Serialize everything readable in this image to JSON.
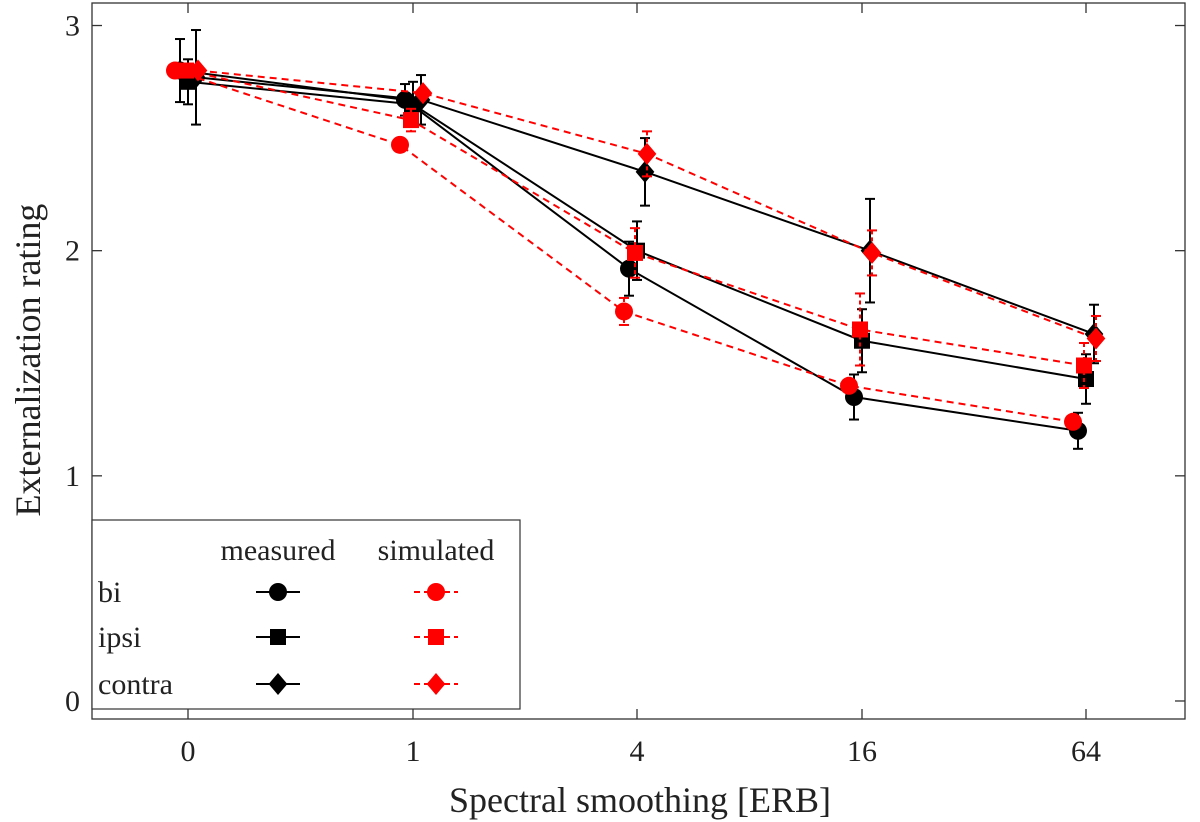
{
  "chart_data": {
    "type": "line",
    "title": "",
    "xlabel": "Spectral smoothing [ERB]",
    "ylabel": "Externalization rating",
    "categories": [
      "0",
      "1",
      "4",
      "16",
      "64"
    ],
    "ylim": [
      -0.08,
      3.1
    ],
    "yticks": [
      "0",
      "1",
      "2",
      "3"
    ],
    "legend": {
      "placement": "bottom-left",
      "header_measured": "measured",
      "header_simulated": "simulated",
      "rows": [
        "bi",
        "ipsi",
        "contra"
      ]
    },
    "series": [
      {
        "name": "bi measured",
        "condition": "bi",
        "kind": "measured",
        "marker": "circle",
        "color": "#000000",
        "values": [
          2.8,
          2.67,
          1.92,
          1.35,
          1.2
        ],
        "err": [
          0.14,
          0.07,
          0.12,
          0.1,
          0.08
        ]
      },
      {
        "name": "ipsi measured",
        "condition": "ipsi",
        "kind": "measured",
        "marker": "square",
        "color": "#000000",
        "values": [
          2.75,
          2.65,
          2.0,
          1.6,
          1.43
        ],
        "err": [
          0.1,
          0.1,
          0.13,
          0.14,
          0.11
        ]
      },
      {
        "name": "contra measured",
        "condition": "contra",
        "kind": "measured",
        "marker": "diamond",
        "color": "#000000",
        "values": [
          2.77,
          2.67,
          2.35,
          2.0,
          1.63
        ],
        "err": [
          0.21,
          0.11,
          0.15,
          0.23,
          0.13
        ]
      },
      {
        "name": "bi simulated",
        "condition": "bi",
        "kind": "simulated",
        "marker": "circle",
        "color": "#ff0000",
        "values": [
          2.8,
          2.47,
          1.73,
          1.4,
          1.24
        ],
        "err": [
          0.0,
          0.0,
          0.06,
          0.0,
          0.0
        ]
      },
      {
        "name": "ipsi simulated",
        "condition": "ipsi",
        "kind": "simulated",
        "marker": "square",
        "color": "#ff0000",
        "values": [
          2.8,
          2.58,
          1.99,
          1.65,
          1.49
        ],
        "err": [
          0.0,
          0.05,
          0.11,
          0.16,
          0.1
        ]
      },
      {
        "name": "contra simulated",
        "condition": "contra",
        "kind": "simulated",
        "marker": "diamond",
        "color": "#ff0000",
        "values": [
          2.8,
          2.7,
          2.43,
          1.99,
          1.61
        ],
        "err": [
          0.0,
          0.0,
          0.1,
          0.1,
          0.1
        ]
      }
    ]
  }
}
